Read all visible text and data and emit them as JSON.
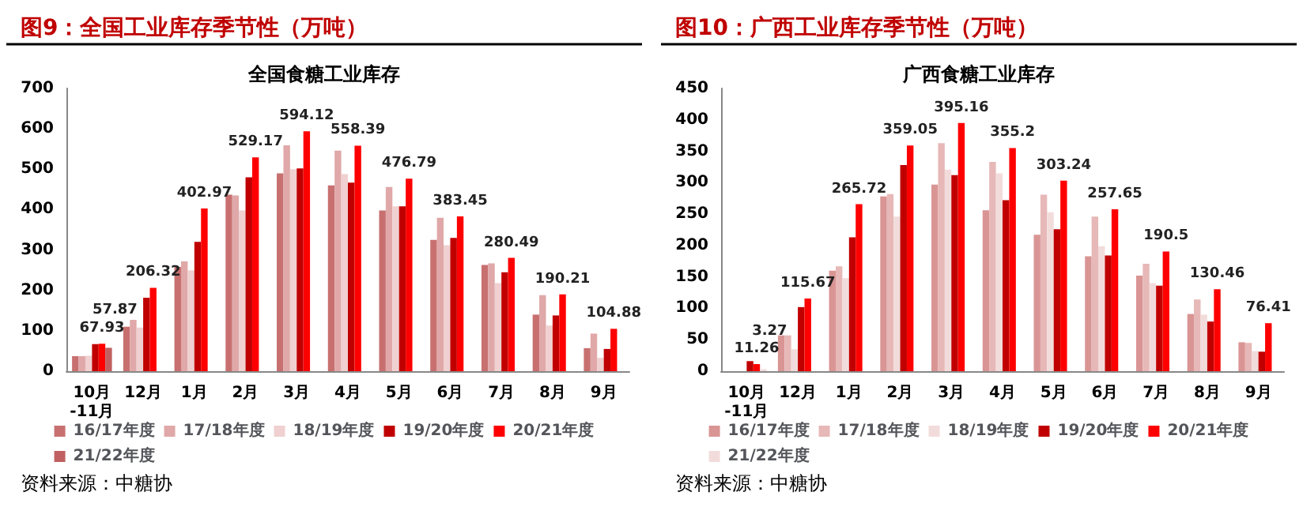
{
  "chart_data": [
    {
      "type": "bar",
      "title": "图9：全国工业库存季节性（万吨）",
      "subtitle": "全国食糖工业库存",
      "annotations": [
        "资料来源：中糖协"
      ],
      "categories": [
        "10月-11月",
        "12月",
        "1月",
        "2月",
        "3月",
        "4月",
        "5月",
        "6月",
        "7月",
        "8月",
        "9月"
      ],
      "series": [
        {
          "name": "16/17年度",
          "color": "#c87070",
          "values": [
            37,
            110,
            258,
            437,
            490,
            460,
            398,
            325,
            263,
            140,
            57
          ]
        },
        {
          "name": "17/18年度",
          "color": "#e0a8a8",
          "values": [
            37,
            127,
            272,
            435,
            559,
            546,
            456,
            380,
            267,
            188,
            93
          ]
        },
        {
          "name": "18/19年度",
          "color": "#f0d0d0",
          "values": [
            38,
            108,
            250,
            398,
            500,
            488,
            408,
            312,
            218,
            113,
            33
          ]
        },
        {
          "name": "19/20年度",
          "color": "#c00000",
          "values": [
            67,
            182,
            320,
            480,
            502,
            467,
            408,
            330,
            245,
            138,
            55
          ]
        },
        {
          "name": "20/21年度",
          "color": "#ff0000",
          "values": [
            67.93,
            206.32,
            402.97,
            529.17,
            594.12,
            558.39,
            476.79,
            383.45,
            280.49,
            190.21,
            104.88
          ],
          "value_labels": [
            "67.93",
            "206.32",
            "402.97",
            "529.17",
            "594.12",
            "558.39",
            "476.79",
            "383.45",
            "280.49",
            "190.21",
            "104.88"
          ]
        },
        {
          "name": "21/22年度",
          "color": "#c06060",
          "values": [
            57.87,
            null,
            null,
            null,
            null,
            null,
            null,
            null,
            null,
            null,
            null
          ],
          "value_labels": [
            "57.87",
            null,
            null,
            null,
            null,
            null,
            null,
            null,
            null,
            null,
            null
          ]
        }
      ],
      "ylim": [
        0,
        700
      ],
      "yticks": [
        0,
        100,
        200,
        300,
        400,
        500,
        600,
        700
      ],
      "grid": false,
      "legend": "bottom"
    },
    {
      "type": "bar",
      "title": "图10：广西工业库存季节性（万吨）",
      "subtitle": "广西食糖工业库存",
      "annotations": [
        "资料来源：中糖协"
      ],
      "categories": [
        "10月-11月",
        "12月",
        "1月",
        "2月",
        "3月",
        "4月",
        "5月",
        "6月",
        "7月",
        "8月",
        "9月"
      ],
      "series": [
        {
          "name": "16/17年度",
          "color": "#d99594",
          "values": [
            null,
            57,
            160,
            278,
            297,
            256,
            217,
            183,
            152,
            91,
            46
          ]
        },
        {
          "name": "17/18年度",
          "color": "#e6b8b7",
          "values": [
            null,
            57,
            167,
            282,
            363,
            333,
            281,
            246,
            171,
            114,
            45
          ]
        },
        {
          "name": "18/19年度",
          "color": "#f2dcdb",
          "values": [
            null,
            35,
            148,
            246,
            321,
            315,
            253,
            199,
            140,
            90,
            32
          ]
        },
        {
          "name": "19/20年度",
          "color": "#c00000",
          "values": [
            16,
            102,
            213,
            328,
            312,
            272,
            226,
            184,
            136,
            79,
            31
          ]
        },
        {
          "name": "20/21年度",
          "color": "#ff0000",
          "values": [
            11.26,
            115.67,
            265.72,
            359.05,
            395.16,
            355.2,
            303.24,
            257.65,
            190.5,
            130.46,
            76.41
          ],
          "value_labels": [
            "11.26",
            "115.67",
            "265.72",
            "359.05",
            "395.16",
            "355.2",
            "303.24",
            "257.65",
            "190.5",
            "130.46",
            "76.41"
          ]
        },
        {
          "name": "21/22年度",
          "color": "#f2dcdb",
          "values": [
            3.27,
            null,
            null,
            null,
            null,
            null,
            null,
            null,
            null,
            null,
            null
          ],
          "value_labels": [
            "3.27",
            null,
            null,
            null,
            null,
            null,
            null,
            null,
            null,
            null,
            null
          ]
        }
      ],
      "ylim": [
        0,
        450
      ],
      "yticks": [
        0,
        50,
        100,
        150,
        200,
        250,
        300,
        350,
        400,
        450
      ],
      "grid": false,
      "legend": "bottom"
    }
  ]
}
